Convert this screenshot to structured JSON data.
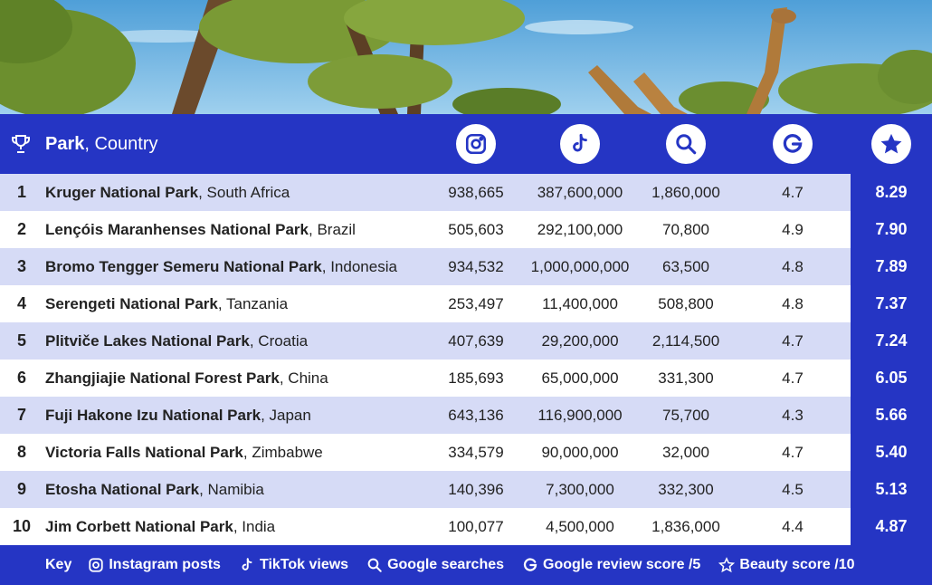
{
  "colors": {
    "brand_blue": "#2535c4",
    "row_light": "#d6dbf6",
    "row_white": "#ffffff"
  },
  "header": {
    "park_label": "Park",
    "country_label": ", Country",
    "icons": [
      "trophy-icon",
      "instagram-icon",
      "tiktok-icon",
      "search-icon",
      "google-icon",
      "star-icon"
    ]
  },
  "chart_data": {
    "type": "table",
    "columns": [
      "Rank",
      "Park, Country",
      "Instagram posts",
      "TikTok views",
      "Google searches",
      "Google review score /5",
      "Beauty score /10"
    ],
    "rows": [
      {
        "rank": "1",
        "park": "Kruger National Park",
        "country": ", South Africa",
        "instagram": "938,665",
        "tiktok": "387,600,000",
        "searches": "1,860,000",
        "review": "4.7",
        "beauty": "8.29"
      },
      {
        "rank": "2",
        "park": "Lençóis Maranhenses National Park",
        "country": ", Brazil",
        "instagram": "505,603",
        "tiktok": "292,100,000",
        "searches": "70,800",
        "review": "4.9",
        "beauty": "7.90"
      },
      {
        "rank": "3",
        "park": "Bromo Tengger Semeru National Park",
        "country": ", Indonesia",
        "instagram": "934,532",
        "tiktok": "1,000,000,000",
        "searches": "63,500",
        "review": "4.8",
        "beauty": "7.89"
      },
      {
        "rank": "4",
        "park": "Serengeti National Park",
        "country": ", Tanzania",
        "instagram": "253,497",
        "tiktok": "11,400,000",
        "searches": "508,800",
        "review": "4.8",
        "beauty": "7.37"
      },
      {
        "rank": "5",
        "park": "Plitviče Lakes National Park",
        "country": ", Croatia",
        "instagram": "407,639",
        "tiktok": "29,200,000",
        "searches": "2,114,500",
        "review": "4.7",
        "beauty": "7.24"
      },
      {
        "rank": "6",
        "park": "Zhangjiajie National Forest Park",
        "country": ", China",
        "instagram": "185,693",
        "tiktok": "65,000,000",
        "searches": "331,300",
        "review": "4.7",
        "beauty": "6.05"
      },
      {
        "rank": "7",
        "park": "Fuji Hakone Izu National Park",
        "country": ", Japan",
        "instagram": "643,136",
        "tiktok": "116,900,000",
        "searches": "75,700",
        "review": "4.3",
        "beauty": "5.66"
      },
      {
        "rank": "8",
        "park": "Victoria Falls National Park",
        "country": ", Zimbabwe",
        "instagram": "334,579",
        "tiktok": "90,000,000",
        "searches": "32,000",
        "review": "4.7",
        "beauty": "5.40"
      },
      {
        "rank": "9",
        "park": "Etosha National Park",
        "country": ", Namibia",
        "instagram": "140,396",
        "tiktok": "7,300,000",
        "searches": "332,300",
        "review": "4.5",
        "beauty": "5.13"
      },
      {
        "rank": "10",
        "park": "Jim Corbett National Park",
        "country": ", India",
        "instagram": "100,077",
        "tiktok": "4,500,000",
        "searches": "1,836,000",
        "review": "4.4",
        "beauty": "4.87"
      }
    ]
  },
  "key": {
    "title": "Key",
    "items": [
      {
        "icon": "instagram-icon",
        "label": "Instagram posts"
      },
      {
        "icon": "tiktok-icon",
        "label": "TikTok views"
      },
      {
        "icon": "search-icon",
        "label": "Google searches"
      },
      {
        "icon": "google-icon",
        "label": "Google review score /5"
      },
      {
        "icon": "star-icon",
        "label": "Beauty score /10"
      }
    ]
  }
}
